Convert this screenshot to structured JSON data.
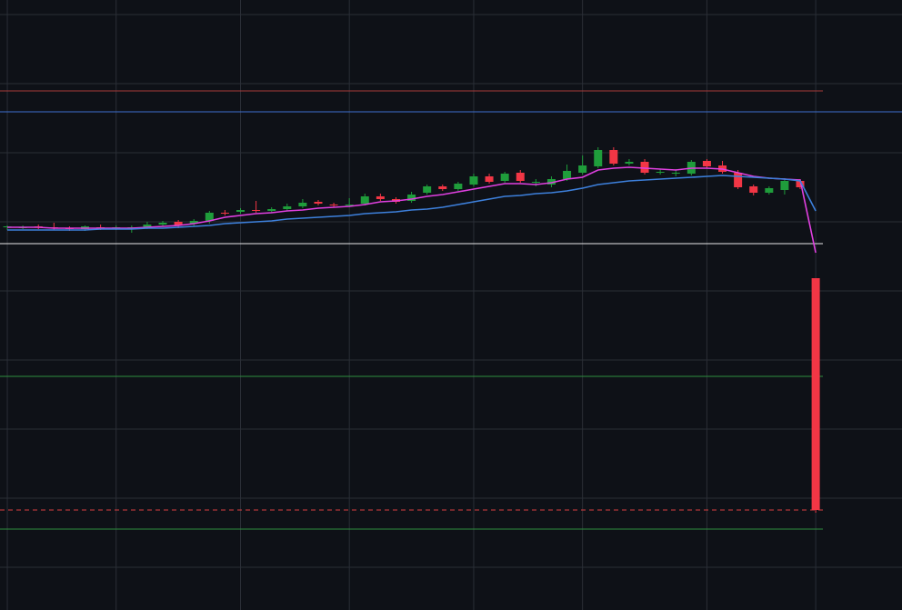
{
  "chart_data": {
    "type": "candlestick",
    "background": "#0e1117",
    "grid_color": "#2a2e36",
    "grid": true,
    "xlim": [
      -0.47,
      57.55
    ],
    "xticks": [
      0,
      7,
      15,
      22,
      30,
      37,
      45,
      52
    ],
    "ylim": [
      0,
      671
    ],
    "yticks": [
      655,
      579,
      503,
      427,
      351,
      275,
      199,
      123,
      47
    ],
    "up_color": "#1f9d3b",
    "down_color": "#f23645",
    "x": [
      0,
      1,
      2,
      3,
      4,
      5,
      6,
      7,
      8,
      9,
      10,
      11,
      12,
      13,
      14,
      15,
      16,
      17,
      18,
      19,
      20,
      21,
      22,
      23,
      24,
      25,
      26,
      27,
      28,
      29,
      30,
      31,
      32,
      33,
      34,
      35,
      36,
      37,
      38,
      39,
      40,
      41,
      42,
      43,
      44,
      45,
      46,
      47,
      48,
      49,
      50,
      51,
      52
    ],
    "open": [
      421,
      421,
      422,
      421,
      420,
      419,
      421,
      420,
      420,
      421,
      424,
      427,
      425,
      428,
      437,
      438,
      440,
      439,
      441,
      444,
      449,
      446,
      445,
      447,
      455,
      452,
      450,
      459,
      466,
      463,
      468,
      477,
      472,
      481,
      470,
      468,
      474,
      481,
      488,
      506,
      491,
      493,
      481,
      481,
      480,
      494,
      489,
      481,
      466,
      459,
      462,
      472,
      365
    ],
    "high": [
      423,
      423,
      424,
      426,
      422,
      423,
      424,
      423,
      423,
      427,
      428,
      429,
      430,
      439,
      440,
      442,
      450,
      443,
      447,
      452,
      451,
      448,
      453,
      458,
      458,
      454,
      460,
      468,
      468,
      471,
      480,
      480,
      482,
      484,
      474,
      477,
      490,
      500,
      509,
      509,
      496,
      496,
      485,
      485,
      495,
      496,
      494,
      484,
      468,
      466,
      475,
      474,
      365
    ],
    "low": [
      418,
      419,
      419,
      418,
      417,
      417,
      418,
      418,
      415,
      419,
      422,
      420,
      422,
      425,
      434,
      436,
      437,
      437,
      439,
      442,
      445,
      443,
      443,
      445,
      450,
      447,
      448,
      457,
      461,
      461,
      466,
      469,
      470,
      470,
      466,
      465,
      472,
      479,
      486,
      489,
      489,
      479,
      479,
      477,
      478,
      486,
      480,
      463,
      456,
      457,
      457,
      463,
      107
    ],
    "close": [
      422,
      421,
      421,
      420,
      419,
      422,
      420,
      421,
      421,
      424,
      426,
      423,
      428,
      437,
      436,
      440,
      439,
      441,
      444,
      448,
      447,
      445,
      446,
      455,
      452,
      449,
      457,
      466,
      463,
      469,
      477,
      471,
      480,
      472,
      471,
      474,
      483,
      489,
      506,
      491,
      493,
      481,
      482,
      481,
      493,
      488,
      482,
      465,
      459,
      464,
      472,
      465,
      110
    ],
    "series": [
      {
        "color": "#e040e0",
        "values": [
          421,
          421,
          421,
          420,
          420,
          420,
          420,
          420,
          420,
          421,
          422,
          423,
          425,
          428,
          432,
          434,
          436,
          437,
          439,
          440,
          442,
          443,
          444,
          446,
          449,
          450,
          452,
          455,
          457,
          460,
          463,
          466,
          469,
          469,
          468,
          470,
          474,
          476,
          484,
          486,
          487,
          486,
          485,
          484,
          486,
          486,
          485,
          481,
          477,
          475,
          474,
          473,
          393
        ]
      },
      {
        "color": "#3d80dc",
        "values": [
          418,
          418,
          418,
          418,
          418,
          418,
          419,
          419,
          419,
          420,
          420,
          421,
          422,
          423,
          425,
          426,
          427,
          428,
          430,
          431,
          432,
          433,
          434,
          436,
          437,
          438,
          440,
          441,
          443,
          446,
          449,
          452,
          455,
          456,
          458,
          459,
          461,
          464,
          468,
          470,
          472,
          473,
          474,
          475,
          476,
          477,
          478,
          477,
          476,
          475,
          474,
          472,
          439
        ]
      }
    ],
    "levels": [
      {
        "value": 571,
        "color": "#a83a3a"
      },
      {
        "value": 548,
        "color": "#3d6fcf",
        "full_width": true
      },
      {
        "value": 403,
        "color": "#e8e8e8"
      },
      {
        "value": 257,
        "color": "#2f8f3f"
      },
      {
        "value": 110,
        "color": "#d94040",
        "dash": true
      },
      {
        "value": 89,
        "color": "#2f8f3f"
      }
    ]
  }
}
